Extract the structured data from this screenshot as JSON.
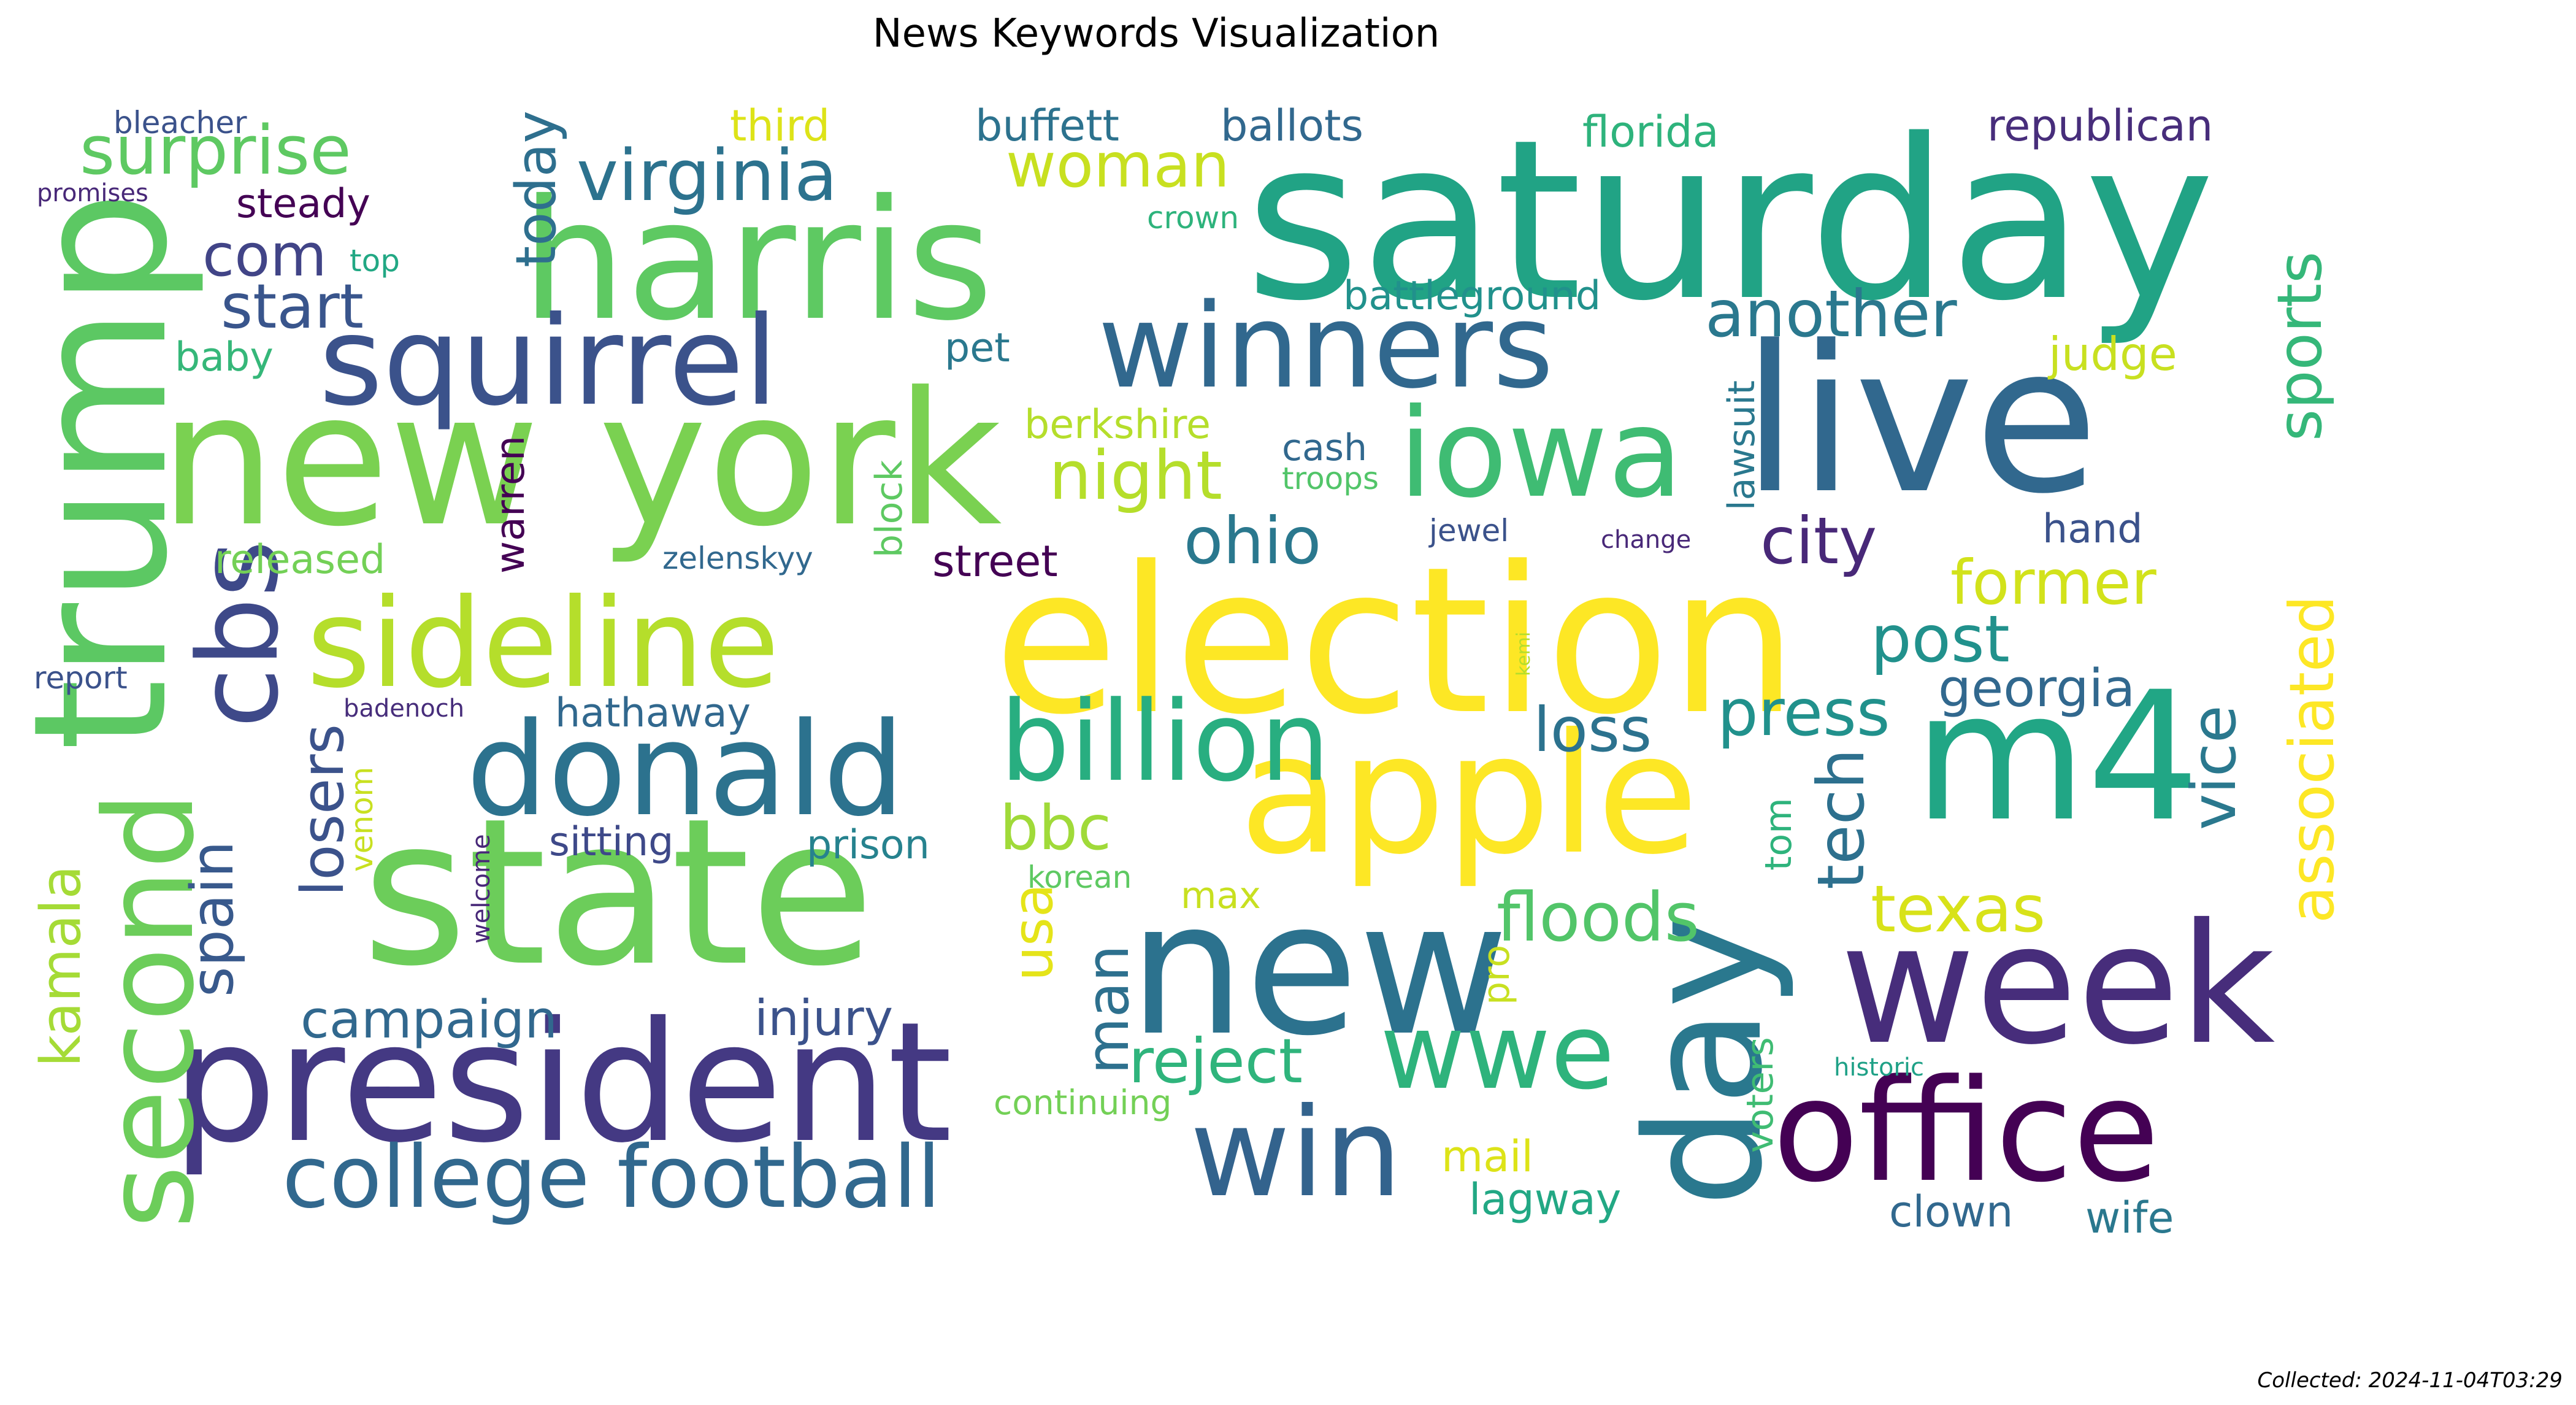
{
  "title": "News Keywords Visualization",
  "footer": "Collected: 2024-11-04T03:29",
  "words": [
    {
      "text": "saturday",
      "color": "#21a385"
    },
    {
      "text": "election",
      "color": "#fde725"
    },
    {
      "text": "trump",
      "color": "#5cc863"
    },
    {
      "text": "new york",
      "color": "#7ad151"
    },
    {
      "text": "state",
      "color": "#6ccd5a"
    },
    {
      "text": "president",
      "color": "#443983"
    },
    {
      "text": "live",
      "color": "#31688e"
    },
    {
      "text": "harris",
      "color": "#5ec962"
    },
    {
      "text": "apple",
      "color": "#fde725"
    },
    {
      "text": "new",
      "color": "#2c728e"
    },
    {
      "text": "m4",
      "color": "#21a685"
    },
    {
      "text": "day",
      "color": "#2a788e"
    },
    {
      "text": "week",
      "color": "#472d7b"
    },
    {
      "text": "office",
      "color": "#440154"
    },
    {
      "text": "second",
      "color": "#6ccd5a"
    },
    {
      "text": "winners",
      "color": "#31688e"
    },
    {
      "text": "squirrel",
      "color": "#3b528b"
    },
    {
      "text": "sideline",
      "color": "#b5de2b"
    },
    {
      "text": "donald",
      "color": "#2c728e"
    },
    {
      "text": "cbs",
      "color": "#3e4989"
    },
    {
      "text": "iowa",
      "color": "#3fbc73"
    },
    {
      "text": "billion",
      "color": "#28ae80"
    },
    {
      "text": "win",
      "color": "#33638d"
    },
    {
      "text": "wwe",
      "color": "#2eb37c"
    },
    {
      "text": "college football",
      "color": "#31688e"
    },
    {
      "text": "virginia",
      "color": "#2c728e"
    },
    {
      "text": "surprise",
      "color": "#5ec962"
    },
    {
      "text": "another",
      "color": "#2a788e"
    },
    {
      "text": "today",
      "color": "#2e6f8e"
    },
    {
      "text": "start",
      "color": "#39558c"
    },
    {
      "text": "com",
      "color": "#414487"
    },
    {
      "text": "woman",
      "color": "#c8e020"
    },
    {
      "text": "night",
      "color": "#b5de2b"
    },
    {
      "text": "ohio",
      "color": "#2a788e"
    },
    {
      "text": "city",
      "color": "#482878"
    },
    {
      "text": "post",
      "color": "#21918c"
    },
    {
      "text": "press",
      "color": "#21918c"
    },
    {
      "text": "former",
      "color": "#d2e21b"
    },
    {
      "text": "sports",
      "color": "#35b779"
    },
    {
      "text": "associated",
      "color": "#fde725"
    },
    {
      "text": "floods",
      "color": "#52c569"
    },
    {
      "text": "texas",
      "color": "#d8e219"
    },
    {
      "text": "tech",
      "color": "#2d708e"
    },
    {
      "text": "vice",
      "color": "#2a788e"
    },
    {
      "text": "loss",
      "color": "#2c728e"
    },
    {
      "text": "georgia",
      "color": "#31688e"
    },
    {
      "text": "losers",
      "color": "#3b528b"
    },
    {
      "text": "spain",
      "color": "#38598c"
    },
    {
      "text": "kamala",
      "color": "#a5db36"
    },
    {
      "text": "bbc",
      "color": "#a0da39"
    },
    {
      "text": "usa",
      "color": "#e5e419"
    },
    {
      "text": "man",
      "color": "#2d708e"
    },
    {
      "text": "reject",
      "color": "#2fb47c"
    },
    {
      "text": "campaign",
      "color": "#31688e"
    },
    {
      "text": "injury",
      "color": "#3b528b"
    },
    {
      "text": "republican",
      "color": "#472d7b"
    },
    {
      "text": "ballots",
      "color": "#31688e"
    },
    {
      "text": "buffett",
      "color": "#2c728e"
    },
    {
      "text": "third",
      "color": "#dde318"
    },
    {
      "text": "florida",
      "color": "#2eb37c"
    },
    {
      "text": "battleground",
      "color": "#21918c"
    },
    {
      "text": "judge",
      "color": "#c8e020"
    },
    {
      "text": "steady",
      "color": "#440154"
    },
    {
      "text": "bleacher",
      "color": "#3b528b"
    },
    {
      "text": "promises",
      "color": "#482878"
    },
    {
      "text": "top",
      "color": "#22a884"
    },
    {
      "text": "baby",
      "color": "#35b779"
    },
    {
      "text": "pet",
      "color": "#2a788e"
    },
    {
      "text": "crown",
      "color": "#2eb37c"
    },
    {
      "text": "berkshire",
      "color": "#b5de2b"
    },
    {
      "text": "cash",
      "color": "#31688e"
    },
    {
      "text": "troops",
      "color": "#52c569"
    },
    {
      "text": "lawsuit",
      "color": "#2a788e"
    },
    {
      "text": "hand",
      "color": "#3b528b"
    },
    {
      "text": "jewel",
      "color": "#3b528b"
    },
    {
      "text": "change",
      "color": "#482878"
    },
    {
      "text": "warren",
      "color": "#440154"
    },
    {
      "text": "block",
      "color": "#5ec962"
    },
    {
      "text": "released",
      "color": "#73d056"
    },
    {
      "text": "zelenskyy",
      "color": "#31688e"
    },
    {
      "text": "street",
      "color": "#440154"
    },
    {
      "text": "report",
      "color": "#3b528b"
    },
    {
      "text": "badenoch",
      "color": "#472d7b"
    },
    {
      "text": "hathaway",
      "color": "#31688e"
    },
    {
      "text": "kemi",
      "color": "#b5de2b"
    },
    {
      "text": "sitting",
      "color": "#3e4989"
    },
    {
      "text": "prison",
      "color": "#26828e"
    },
    {
      "text": "venom",
      "color": "#c8e020"
    },
    {
      "text": "welcome",
      "color": "#482878"
    },
    {
      "text": "korean",
      "color": "#5ec962"
    },
    {
      "text": "max",
      "color": "#c8e020"
    },
    {
      "text": "tom",
      "color": "#2eb37c"
    },
    {
      "text": "pro",
      "color": "#c8e020"
    },
    {
      "text": "continuing",
      "color": "#73d056"
    },
    {
      "text": "voters",
      "color": "#3fbc73"
    },
    {
      "text": "historic",
      "color": "#1fa187"
    },
    {
      "text": "mail",
      "color": "#dde318"
    },
    {
      "text": "lagway",
      "color": "#22a884"
    },
    {
      "text": "clown",
      "color": "#31688e"
    },
    {
      "text": "wife",
      "color": "#2a788e"
    }
  ]
}
